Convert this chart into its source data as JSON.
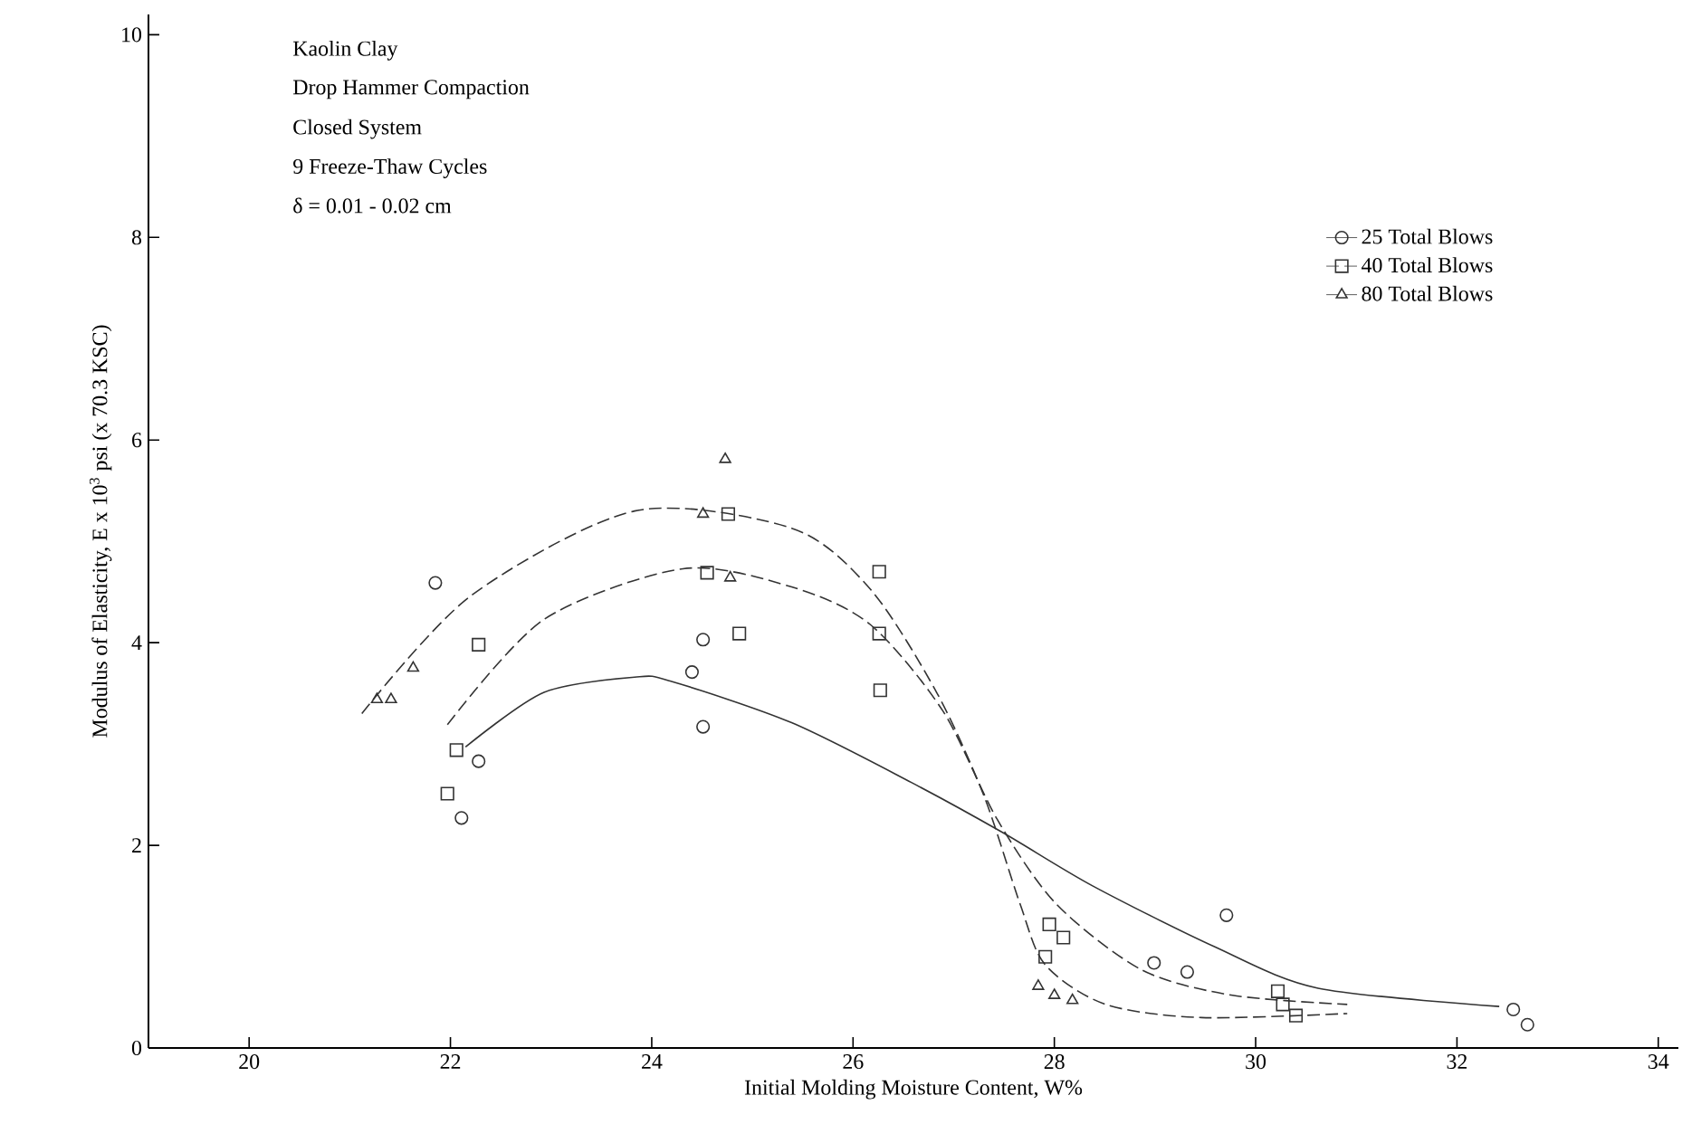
{
  "chart_data": {
    "type": "scatter",
    "xlabel": "Initial Molding Moisture Content, W%",
    "ylabel": "Modulus of Elasticity, E x 10$^{3}$ psi (x 70.3 KSC)",
    "annotations": [
      "Kaolin Clay",
      "Drop Hammer Compaction",
      "Closed System",
      "9 Freeze-Thaw Cycles",
      "δ = 0.01 - 0.02 cm"
    ],
    "xlim": [
      19,
      34.2
    ],
    "ylim": [
      0,
      10.2
    ],
    "xticks": [
      20,
      22,
      24,
      26,
      28,
      30,
      32,
      34
    ],
    "yticks": [
      0,
      2,
      4,
      6,
      8,
      10
    ],
    "grid": false,
    "legend": "top right",
    "series": [
      {
        "name": "25 Total Blows",
        "marker": "circle",
        "line_style": "solid",
        "color": "#333333",
        "x": [
          21.85,
          22.11,
          22.28,
          24.4,
          24.51,
          24.51,
          28.99,
          29.32,
          29.71,
          32.56,
          32.7
        ],
        "values": [
          4.59,
          2.27,
          2.83,
          3.71,
          3.17,
          4.03,
          0.84,
          0.75,
          1.31,
          0.38,
          0.23
        ]
      },
      {
        "name": "40 Total Blows",
        "marker": "square",
        "line_style": "dashed",
        "color": "#333333",
        "x": [
          21.97,
          22.06,
          22.28,
          24.55,
          24.76,
          24.87,
          26.26,
          26.26,
          26.27,
          27.95,
          28.09,
          27.91,
          30.22,
          30.27,
          30.4
        ],
        "values": [
          2.51,
          2.94,
          3.98,
          4.69,
          5.27,
          4.09,
          4.7,
          4.09,
          3.53,
          1.22,
          1.09,
          0.9,
          0.56,
          0.43,
          0.32
        ]
      },
      {
        "name": "80 Total Blows",
        "marker": "triangle",
        "line_style": "dashed",
        "color": "#333333",
        "x": [
          21.27,
          21.41,
          21.63,
          24.73,
          24.51,
          24.78,
          27.84,
          28.0,
          28.18
        ],
        "values": [
          3.44,
          3.44,
          3.75,
          5.81,
          5.27,
          4.64,
          0.61,
          0.52,
          0.47
        ]
      },
      {
        "type": "line",
        "line_style": "solid",
        "color": "#333333",
        "x": [
          22.15,
          22.93,
          23.83,
          24.19,
          25.39,
          26.58,
          27.48,
          28.38,
          29.59,
          30.62,
          32.42
        ],
        "values": [
          2.97,
          3.51,
          3.66,
          3.62,
          3.21,
          2.62,
          2.13,
          1.6,
          1.0,
          0.59,
          0.41
        ]
      },
      {
        "type": "line",
        "line_style": "dashed",
        "color": "#333333",
        "x": [
          21.97,
          22.93,
          24.31,
          25.39,
          26.17,
          26.89,
          27.43,
          28.02,
          28.87,
          29.77,
          30.91
        ],
        "values": [
          3.19,
          4.23,
          4.73,
          4.55,
          4.18,
          3.33,
          2.26,
          1.42,
          0.77,
          0.52,
          0.43
        ]
      },
      {
        "type": "line",
        "line_style": "dashed",
        "color": "#333333",
        "x": [
          21.12,
          22.2,
          23.83,
          25.39,
          26.17,
          26.83,
          27.3,
          27.66,
          27.91,
          28.51,
          29.46,
          30.91
        ],
        "values": [
          3.3,
          4.46,
          5.3,
          5.13,
          4.53,
          3.51,
          2.49,
          1.42,
          0.82,
          0.43,
          0.3,
          0.34
        ]
      }
    ]
  }
}
